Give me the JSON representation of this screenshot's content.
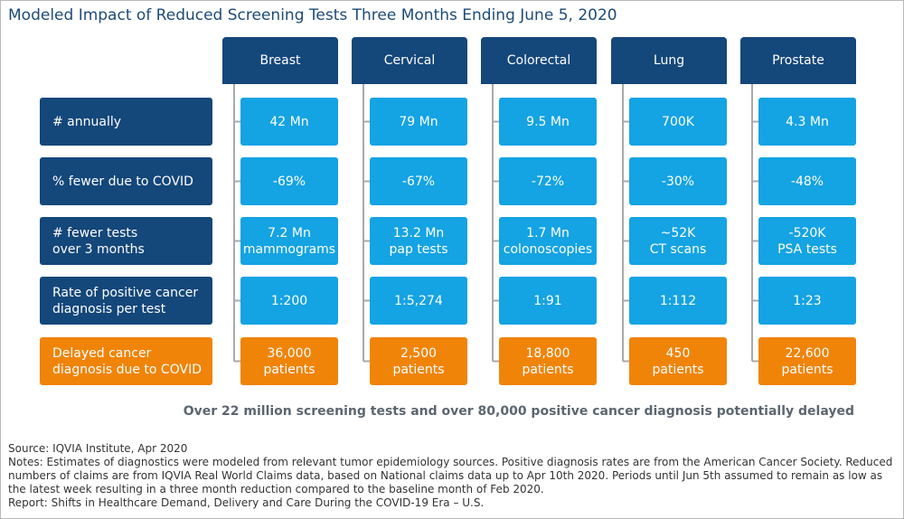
{
  "title": "Modeled Impact of Reduced Screening Tests Three Months Ending June 5, 2020",
  "columns": [
    "Breast",
    "Cervical",
    "Colorectal",
    "Lung",
    "Prostate"
  ],
  "rows": [
    {
      "label": [
        "#  annually"
      ],
      "cells": [
        [
          "42 Mn"
        ],
        [
          "79 Mn"
        ],
        [
          "9.5 Mn"
        ],
        [
          "700K"
        ],
        [
          "4.3 Mn"
        ]
      ]
    },
    {
      "label": [
        "% fewer due to COVID"
      ],
      "cells": [
        [
          "-69%"
        ],
        [
          "-67%"
        ],
        [
          "-72%"
        ],
        [
          "-30%"
        ],
        [
          "-48%"
        ]
      ]
    },
    {
      "label": [
        "# fewer tests",
        "over 3 months"
      ],
      "cells": [
        [
          "7.2 Mn",
          "mammograms"
        ],
        [
          "13.2 Mn",
          "pap tests"
        ],
        [
          "1.7 Mn",
          "colonoscopies"
        ],
        [
          "~52K",
          "CT scans"
        ],
        [
          "-520K",
          "PSA tests"
        ]
      ]
    },
    {
      "label": [
        "Rate of positive cancer",
        "diagnosis per test"
      ],
      "cells": [
        [
          "1:200"
        ],
        [
          "1:5,274"
        ],
        [
          "1:91"
        ],
        [
          "1:112"
        ],
        [
          "1:23"
        ]
      ]
    },
    {
      "label": [
        "Delayed cancer",
        "diagnosis due to COVID"
      ],
      "cells": [
        [
          "36,000",
          "patients"
        ],
        [
          "2,500",
          "patients"
        ],
        [
          "18,800",
          "patients"
        ],
        [
          "450",
          "patients"
        ],
        [
          "22,600",
          "patients"
        ]
      ]
    }
  ],
  "summary": "Over 22 million screening tests and over 80,000 positive cancer diagnosis potentially delayed",
  "footnotes": {
    "source": "Source: IQVIA Institute, Apr 2020",
    "notes": "Notes: Estimates of diagnostics were modeled from relevant tumor epidemiology sources. Positive diagnosis rates are from the American Cancer Society. Reduced numbers of claims are from IQVIA Real World Claims data, based on National claims data up to Apr 10th 2020. Periods until Jun 5th assumed to remain as low as the latest week resulting in a three month reduction compared to the baseline month of Feb 2020.",
    "report": "Report: Shifts in Healthcare Demand, Delivery and Care During the COVID-19 Era – U.S."
  }
}
